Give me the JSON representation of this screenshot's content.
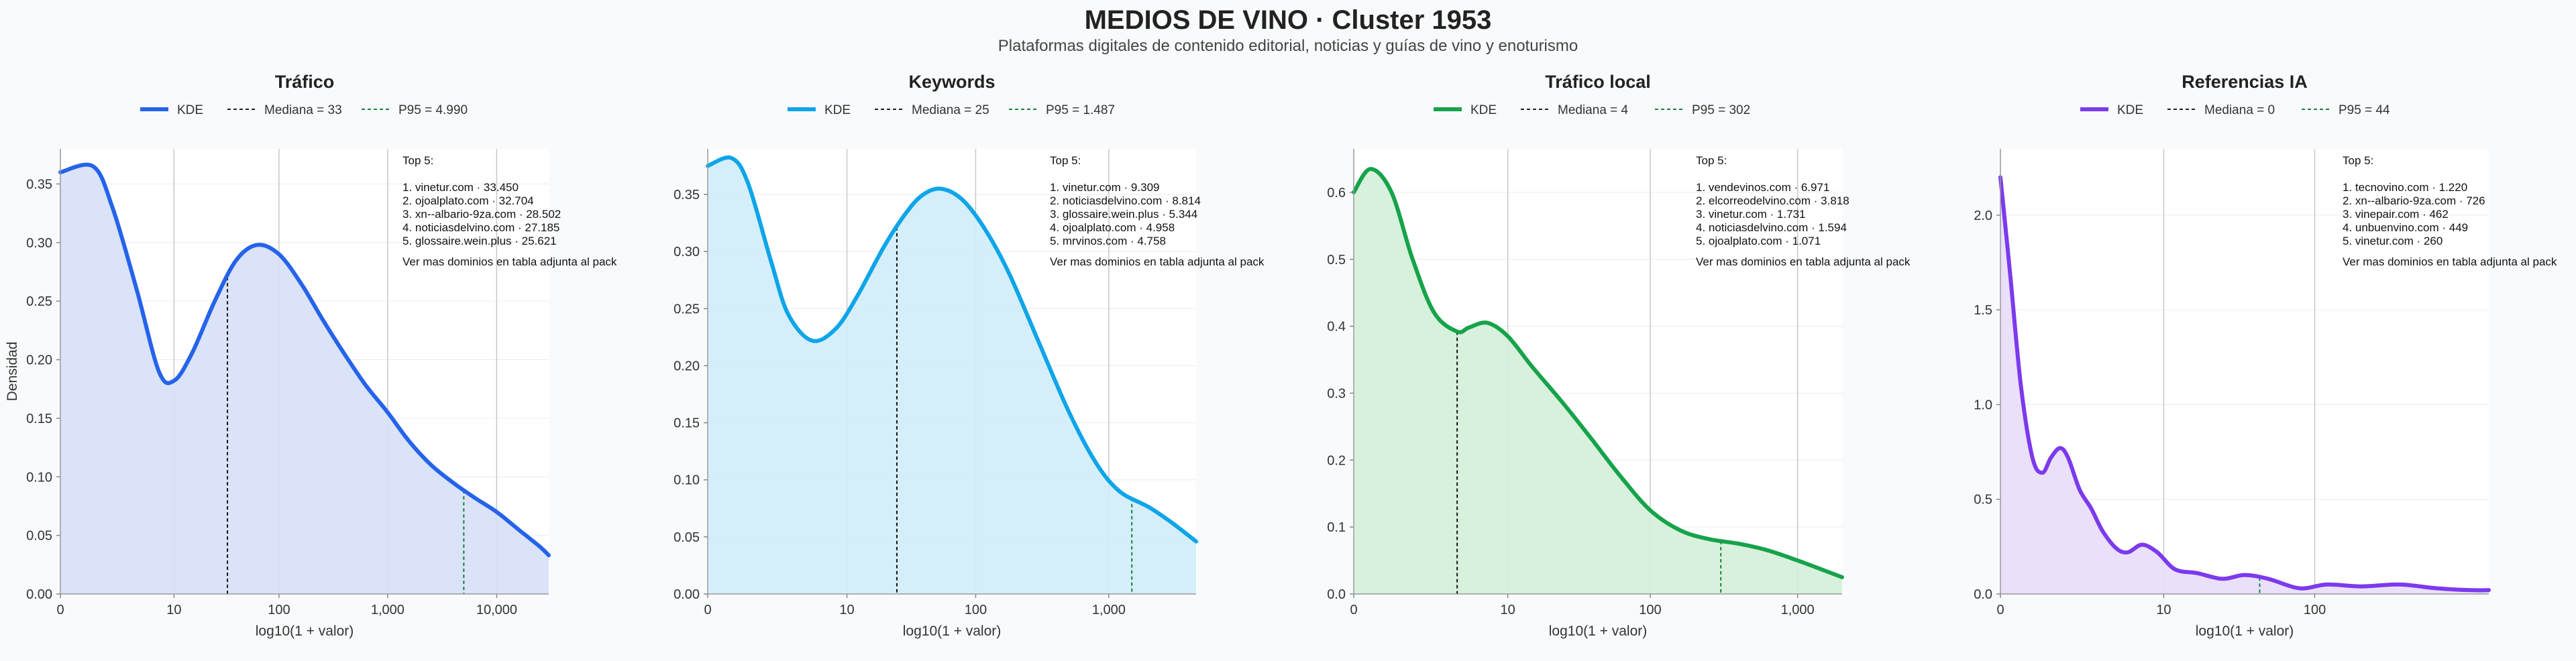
{
  "page": {
    "title": "MEDIOS DE VINO · Cluster 1953",
    "subtitle": "Plataformas digitales de contenido editorial, noticias y guías de vino y enoturismo",
    "shared_ylabel": "Densidad",
    "top_heading": "Top 5:",
    "footnote": "Ver mas dominios en tabla adjunta al pack"
  },
  "chart_data": [
    {
      "type": "area",
      "title": "Tráfico",
      "color": "#2563eb",
      "fill": "#d6e0f7",
      "xlabel": "log10(1 + valor)",
      "x_scale": "log10(1+value)",
      "xlim": [
        0,
        30000
      ],
      "xticks": [
        0,
        10,
        100,
        1000,
        10000
      ],
      "xtick_labels": [
        "0",
        "10",
        "100",
        "1,000",
        "10,000"
      ],
      "ylim": [
        0,
        0.38
      ],
      "yticks": [
        0.0,
        0.05,
        0.1,
        0.15,
        0.2,
        0.25,
        0.3,
        0.35
      ],
      "ytick_labels": [
        "0.00",
        "0.05",
        "0.10",
        "0.15",
        "0.20",
        "0.25",
        "0.30",
        "0.35"
      ],
      "legend": {
        "kde": "KDE",
        "median": "Mediana = 33",
        "p95": "P95 = 4.990"
      },
      "median": 33,
      "p95": 4990,
      "series": [
        {
          "x": [
            0,
            1,
            2,
            4,
            7,
            10,
            15,
            25,
            40,
            63,
            100,
            160,
            250,
            400,
            631,
            1000,
            1585,
            2512,
            3981,
            6310,
            10000,
            15849,
            25119,
            30000
          ],
          "y": [
            0.36,
            0.365,
            0.33,
            0.26,
            0.19,
            0.182,
            0.205,
            0.25,
            0.285,
            0.298,
            0.29,
            0.265,
            0.235,
            0.205,
            0.178,
            0.155,
            0.13,
            0.11,
            0.095,
            0.082,
            0.07,
            0.055,
            0.04,
            0.033
          ]
        }
      ],
      "top5": [
        "1. vinetur.com · 33.450",
        "2. ojoalplato.com · 32.704",
        "3. xn--albario-9za.com · 28.502",
        "4. noticiasdelvino.com · 27.185",
        "5. glossaire.wein.plus · 25.621"
      ]
    },
    {
      "type": "area",
      "title": "Keywords",
      "color": "#0ea5e9",
      "fill": "#d0edf9",
      "xlabel": "log10(1 + valor)",
      "x_scale": "log10(1+value)",
      "xlim": [
        0,
        4500
      ],
      "xticks": [
        0,
        10,
        100,
        1000
      ],
      "xtick_labels": [
        "0",
        "10",
        "100",
        "1,000"
      ],
      "ylim": [
        0,
        0.39
      ],
      "yticks": [
        0.0,
        0.05,
        0.1,
        0.15,
        0.2,
        0.25,
        0.3,
        0.35
      ],
      "ytick_labels": [
        "0.00",
        "0.05",
        "0.10",
        "0.15",
        "0.20",
        "0.25",
        "0.30",
        "0.35"
      ],
      "legend": {
        "kde": "KDE",
        "median": "Mediana = 25",
        "p95": "P95 = 1.487"
      },
      "median": 25,
      "p95": 1487,
      "series": [
        {
          "x": [
            0,
            0.5,
            1,
            2,
            3,
            5,
            8,
            12,
            20,
            30,
            40,
            55,
            80,
            120,
            180,
            300,
            500,
            800,
            1200,
            2000,
            3000,
            4500
          ],
          "y": [
            0.375,
            0.382,
            0.36,
            0.29,
            0.245,
            0.222,
            0.232,
            0.26,
            0.305,
            0.335,
            0.35,
            0.355,
            0.345,
            0.318,
            0.28,
            0.22,
            0.16,
            0.115,
            0.09,
            0.076,
            0.062,
            0.046
          ]
        }
      ],
      "top5": [
        "1. vinetur.com · 9.309",
        "2. noticiasdelvino.com · 8.814",
        "3. glossaire.wein.plus · 5.344",
        "4. ojoalplato.com · 4.958",
        "5. mrvinos.com · 4.758"
      ]
    },
    {
      "type": "area",
      "title": "Tráfico local",
      "color": "#16a34a",
      "fill": "#d3efd9",
      "xlabel": "log10(1 + valor)",
      "x_scale": "log10(1+value)",
      "xlim": [
        0,
        2000
      ],
      "xticks": [
        0,
        10,
        100,
        1000
      ],
      "xtick_labels": [
        "0",
        "10",
        "100",
        "1,000"
      ],
      "ylim": [
        0,
        0.665
      ],
      "yticks": [
        0.0,
        0.1,
        0.2,
        0.3,
        0.4,
        0.5,
        0.6
      ],
      "ytick_labels": [
        "0.0",
        "0.1",
        "0.2",
        "0.3",
        "0.4",
        "0.5",
        "0.6"
      ],
      "legend": {
        "kde": "KDE",
        "median": "Mediana = 4",
        "p95": "P95 = 302"
      },
      "median": 4,
      "p95": 302,
      "series": [
        {
          "x": [
            0,
            0.3,
            0.8,
            1.5,
            2.5,
            4,
            5,
            7,
            10,
            15,
            25,
            40,
            63,
            100,
            160,
            250,
            400,
            631,
            1000,
            2000
          ],
          "y": [
            0.6,
            0.635,
            0.6,
            0.5,
            0.42,
            0.392,
            0.398,
            0.405,
            0.385,
            0.34,
            0.285,
            0.23,
            0.175,
            0.125,
            0.095,
            0.082,
            0.075,
            0.065,
            0.05,
            0.025
          ]
        }
      ],
      "top5": [
        "1. vendevinos.com · 6.971",
        "2. elcorreodelvino.com · 3.818",
        "3. vinetur.com · 1.731",
        "4. noticiasdelvino.com · 1.594",
        "5. ojoalplato.com · 1.071"
      ]
    },
    {
      "type": "area",
      "title": "Referencias IA",
      "color": "#7c3aed",
      "fill": "#e8ddf9",
      "xlabel": "log10(1 + valor)",
      "x_scale": "log10(1+value)",
      "xlim": [
        0,
        1300
      ],
      "xticks": [
        0,
        10,
        100
      ],
      "xtick_labels": [
        "0",
        "10",
        "100"
      ],
      "ylim": [
        0,
        2.35
      ],
      "yticks": [
        0.0,
        0.5,
        1.0,
        1.5,
        2.0
      ],
      "ytick_labels": [
        "0.0",
        "0.5",
        "1.0",
        "1.5",
        "2.0"
      ],
      "legend": {
        "kde": "KDE",
        "median": "Mediana = 0",
        "p95": "P95 = 44"
      },
      "median": 0,
      "p95": 44,
      "series": [
        {
          "x": [
            0,
            0.15,
            0.35,
            0.6,
            0.85,
            1.1,
            1.4,
            1.7,
            2.2,
            2.8,
            3.5,
            4.5,
            5.5,
            7,
            9,
            12,
            17,
            25,
            35,
            50,
            80,
            120,
            200,
            350,
            600,
            1000,
            1300
          ],
          "y": [
            2.2,
            1.7,
            1.1,
            0.72,
            0.64,
            0.72,
            0.77,
            0.72,
            0.55,
            0.45,
            0.33,
            0.24,
            0.22,
            0.26,
            0.22,
            0.13,
            0.11,
            0.08,
            0.1,
            0.08,
            0.03,
            0.05,
            0.04,
            0.05,
            0.03,
            0.02,
            0.02
          ]
        }
      ],
      "top5": [
        "1. tecnovino.com · 1.220",
        "2. xn--albario-9za.com · 726",
        "3. vinepair.com · 462",
        "4. unbuenvino.com · 449",
        "5. vinetur.com · 260"
      ]
    }
  ]
}
